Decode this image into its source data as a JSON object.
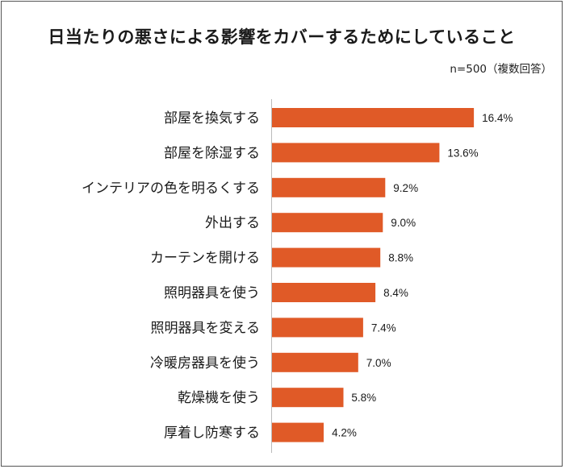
{
  "chart_data": {
    "type": "bar",
    "orientation": "horizontal",
    "title": "日当たりの悪さによる影響をカバーするためにしていること",
    "note": "n=500（複数回答）",
    "categories": [
      "部屋を換気する",
      "部屋を除湿する",
      "インテリアの色を明るくする",
      "外出する",
      "カーテンを開ける",
      "照明器具を使う",
      "照明器具を変える",
      "冷暖房器具を使う",
      "乾燥機を使う",
      "厚着し防寒する"
    ],
    "values": [
      16.4,
      13.6,
      9.2,
      9.0,
      8.8,
      8.4,
      7.4,
      7.0,
      5.8,
      4.2
    ],
    "value_labels": [
      "16.4%",
      "13.6%",
      "9.2%",
      "9.0%",
      "8.8%",
      "8.4%",
      "7.4%",
      "7.0%",
      "5.8%",
      "4.2%"
    ],
    "unit": "%",
    "xlim": [
      0,
      17
    ],
    "grid": false,
    "legend": "none",
    "bar_color": "#E05A27"
  }
}
